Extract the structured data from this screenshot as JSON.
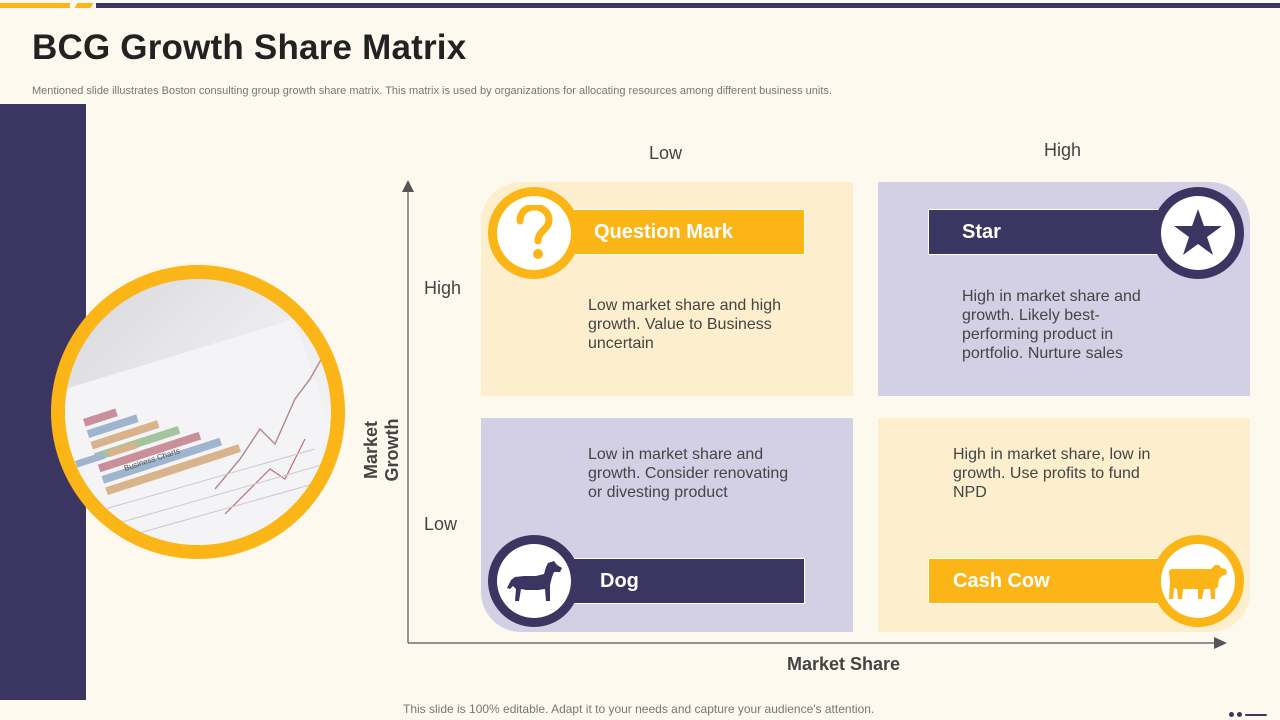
{
  "header": {
    "title": "BCG Growth Share Matrix",
    "subtitle": "Mentioned slide illustrates Boston consulting group growth share matrix. This matrix is used by organizations for allocating resources among different business units."
  },
  "photo": {
    "caption": "Business Charts"
  },
  "axes": {
    "x_title": "Market Share",
    "y_title": "Market Growth",
    "col_low": "Low",
    "col_high": "High",
    "row_high": "High",
    "row_low": "Low"
  },
  "quadrants": {
    "question_mark": {
      "label": "Question Mark",
      "icon": "question-icon",
      "description": "Low market share and high growth.  Value to Business uncertain"
    },
    "star": {
      "label": "Star",
      "icon": "star-icon",
      "description": "High in market share and growth.  Likely best-performing product in portfolio.  Nurture sales"
    },
    "dog": {
      "label": "Dog",
      "icon": "dog-icon",
      "description": "Low in market share and growth.  Consider renovating or divesting product"
    },
    "cash_cow": {
      "label": "Cash Cow",
      "icon": "cow-icon",
      "description": "High in market share, low in growth.  Use profits to fund NPD"
    }
  },
  "colors": {
    "navy": "#3b3561",
    "gold": "#fbb516",
    "pale_gold": "#fdefcd",
    "lavender": "#d3d0e6",
    "background": "#fdf9ee"
  },
  "footer": {
    "text": "This slide is 100% editable. Adapt it to your needs and capture your audience's attention."
  }
}
